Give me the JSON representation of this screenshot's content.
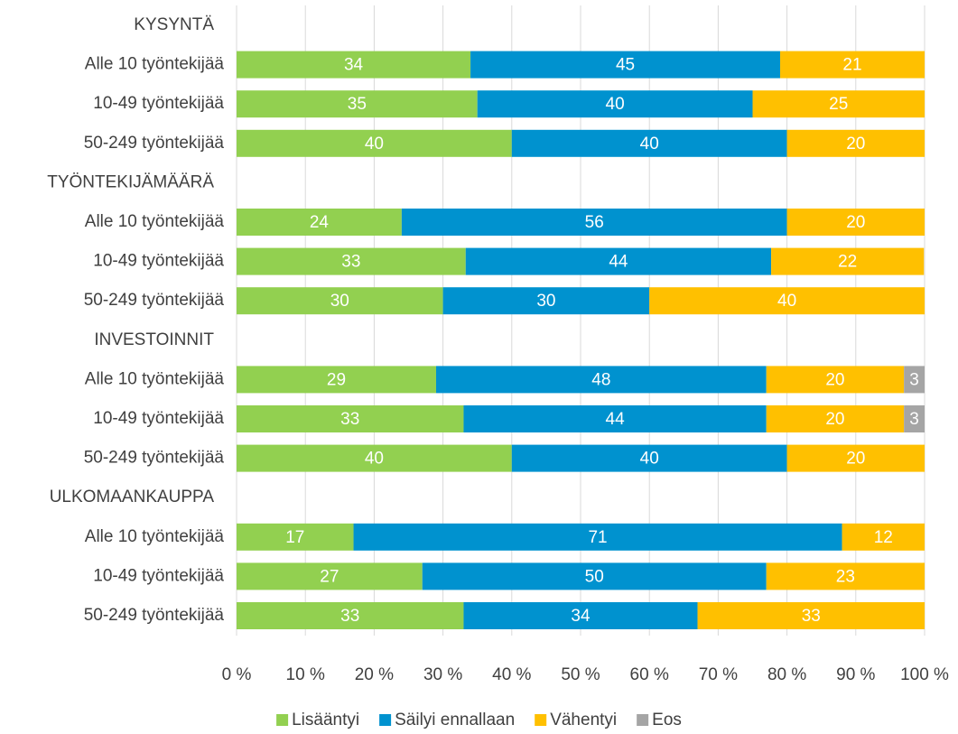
{
  "chart_data": {
    "type": "stacked-bar-horizontal",
    "categories": [
      "KYSYNTÄ",
      "Alle 10 työntekijää",
      "10-49 työntekijää",
      "50-249 työntekijää",
      "TYÖNTEKIJÄMÄÄRÄ",
      "Alle 10 työntekijää",
      "10-49 työntekijää",
      "50-249 työntekijää",
      "INVESTOINNIT",
      "Alle 10 työntekijää",
      "10-49 työntekijää",
      "50-249 työntekijää",
      "ULKOMAANKAUPPA",
      "Alle 10 työntekijää",
      "10-49 työntekijää",
      "50-249 työntekijää"
    ],
    "series": [
      {
        "name": "Lisääntyi",
        "color": "#92d050",
        "values": [
          null,
          34,
          35,
          40,
          null,
          24,
          33.3,
          30,
          null,
          29,
          33,
          40,
          null,
          17,
          27,
          33
        ],
        "value_labels": [
          null,
          "34",
          "35",
          "40",
          null,
          "24",
          "33",
          "30",
          null,
          "29",
          "33",
          "40",
          null,
          "17",
          "27",
          "33"
        ]
      },
      {
        "name": "Säilyi ennallaan",
        "color": "#0092cf",
        "values": [
          null,
          45,
          40,
          40,
          null,
          56,
          44.4,
          30,
          null,
          48,
          44,
          40,
          null,
          71,
          50,
          34
        ],
        "value_labels": [
          null,
          "45",
          "40",
          "40",
          null,
          "56",
          "44",
          "30",
          null,
          "48",
          "44",
          "40",
          null,
          "71",
          "50",
          "34"
        ]
      },
      {
        "name": "Vähentyi",
        "color": "#ffc000",
        "values": [
          null,
          21,
          25,
          20,
          null,
          20,
          22.2,
          40,
          null,
          20,
          20,
          20,
          null,
          12,
          23,
          33
        ],
        "value_labels": [
          null,
          "21",
          "25",
          "20",
          null,
          "20",
          "22",
          "40",
          null,
          "20",
          "20",
          "20",
          null,
          "12",
          "23",
          "33"
        ]
      },
      {
        "name": "Eos",
        "color": "#a5a5a5",
        "values": [
          null,
          null,
          null,
          null,
          null,
          null,
          null,
          null,
          null,
          3,
          3,
          null,
          null,
          null,
          null,
          null
        ]
      }
    ],
    "xlim": [
      0,
      100
    ],
    "xticks": [
      {
        "value": 0,
        "label": "0 %"
      },
      {
        "value": 10,
        "label": "10 %"
      },
      {
        "value": 20,
        "label": "20 %"
      },
      {
        "value": 30,
        "label": "30 %"
      },
      {
        "value": 40,
        "label": "40 %"
      },
      {
        "value": 50,
        "label": "50 %"
      },
      {
        "value": 60,
        "label": "60 %"
      },
      {
        "value": 70,
        "label": "70 %"
      },
      {
        "value": 80,
        "label": "80 %"
      },
      {
        "value": 90,
        "label": "90 %"
      },
      {
        "value": 100,
        "label": "100 %"
      }
    ],
    "grid": true,
    "legend": "bottom"
  }
}
